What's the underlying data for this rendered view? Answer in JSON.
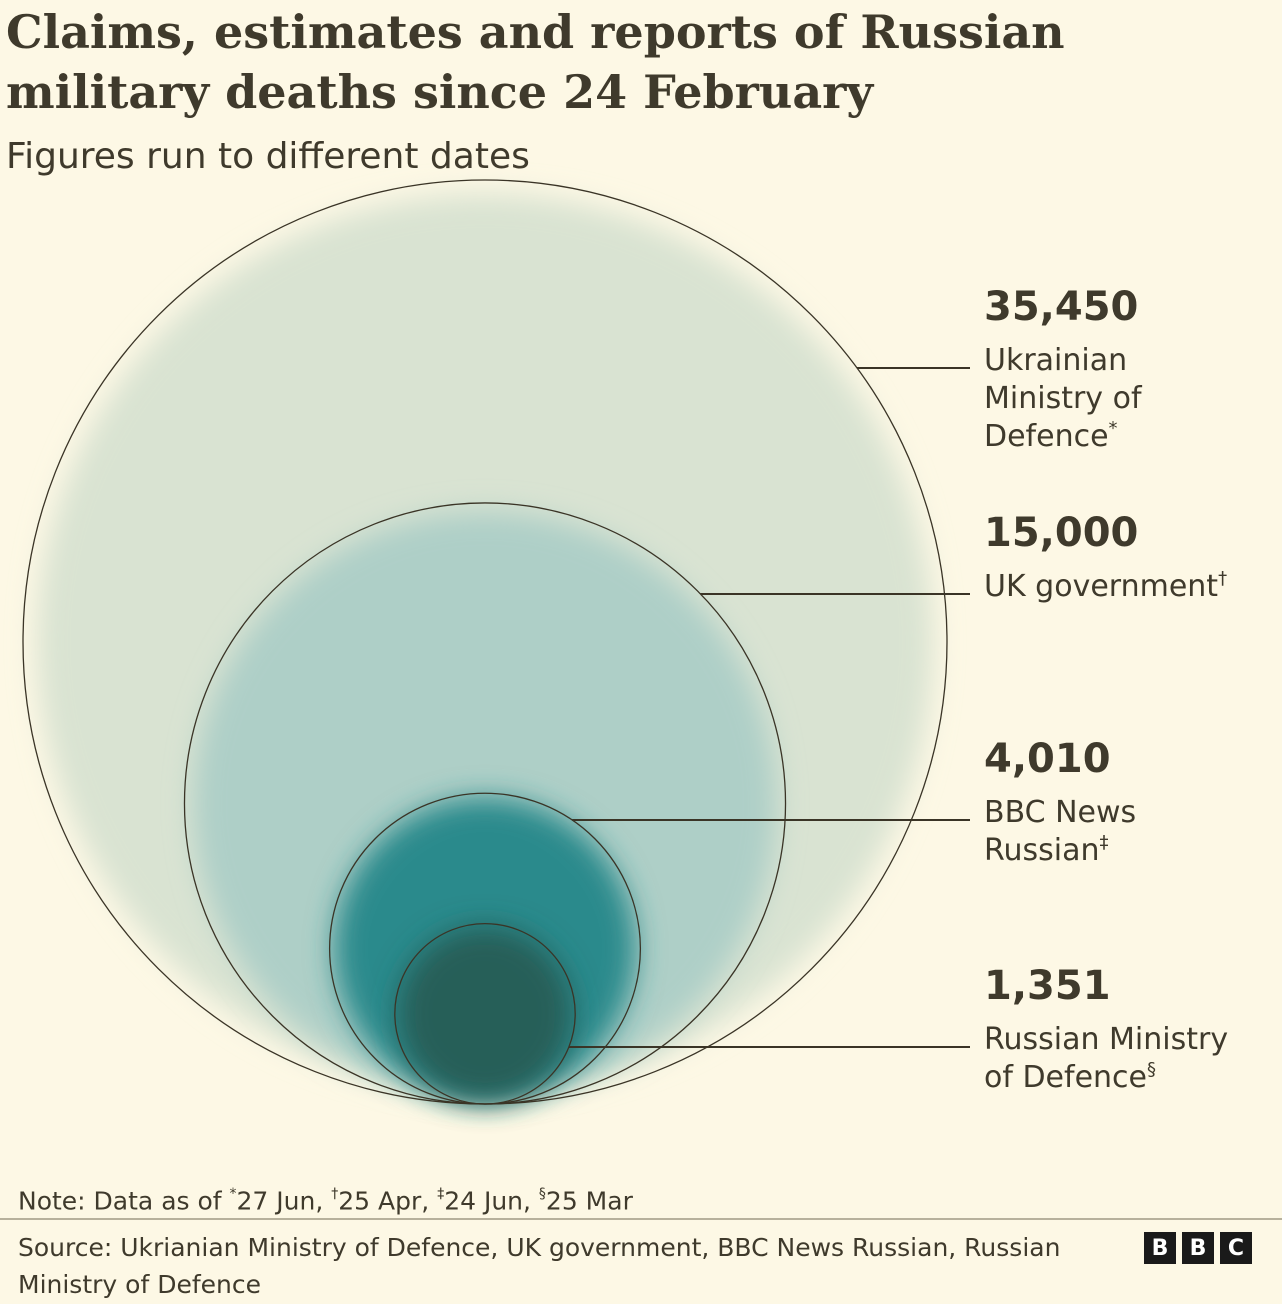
{
  "header": {
    "title": "Claims, estimates and reports of Russian military deaths since 24 February",
    "subtitle": "Figures run to different dates"
  },
  "chart_data": {
    "type": "nested-circles",
    "title": "Claims, estimates and reports of Russian military deaths since 24 February",
    "subtitle": "Figures run to different dates",
    "series": [
      {
        "value": 35450,
        "value_label": "35,450",
        "label_lines": [
          "Ukrainian",
          "Ministry of",
          "Defence"
        ],
        "footnote": "*",
        "color": "#d9e3d2"
      },
      {
        "value": 15000,
        "value_label": "15,000",
        "label_lines": [
          "UK government"
        ],
        "footnote": "†",
        "color": "#aecfc7"
      },
      {
        "value": 4010,
        "value_label": "4,010",
        "label_lines": [
          "BBC News",
          "Russian"
        ],
        "footnote": "‡",
        "color": "#2a8a8c"
      },
      {
        "value": 1351,
        "value_label": "1,351",
        "label_lines": [
          "Russian Ministry",
          "of Defence"
        ],
        "footnote": "§",
        "color": "#255e58"
      }
    ]
  },
  "footer": {
    "note_prefix": "Note: Data as of",
    "note_items": [
      {
        "mark": "*",
        "date": "27 Jun,"
      },
      {
        "mark": "†",
        "date": "25 Apr,"
      },
      {
        "mark": "‡",
        "date": "24 Jun,"
      },
      {
        "mark": "§",
        "date": "25 Mar"
      }
    ],
    "source": "Source: Ukrianian Ministry of Defence, UK government, BBC News Russian, Russian Ministry of Defence",
    "logo_letters": [
      "B",
      "B",
      "C"
    ]
  }
}
